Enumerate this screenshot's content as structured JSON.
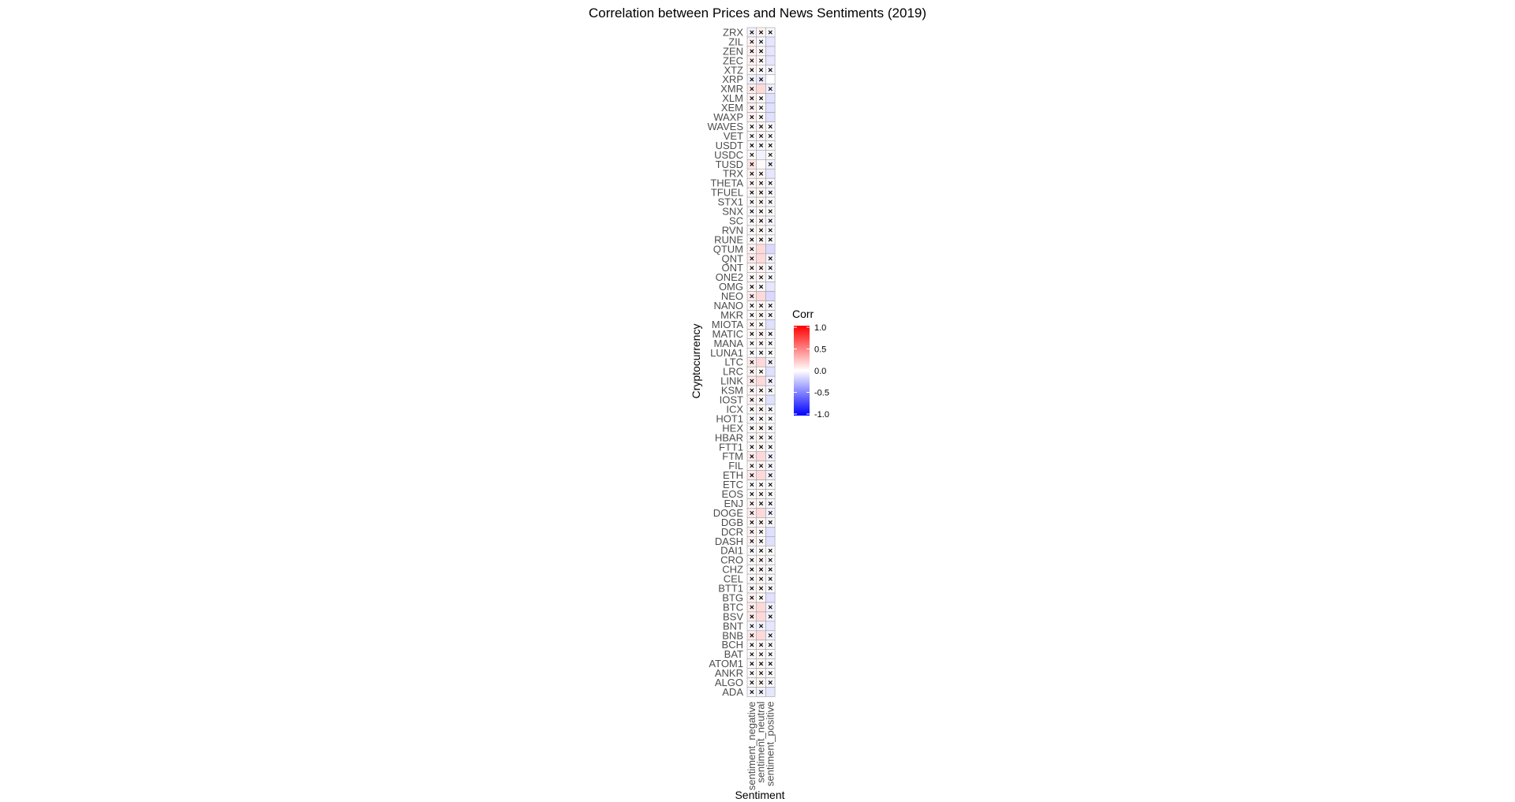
{
  "chart_data": {
    "type": "heatmap",
    "title": "Correlation between Prices and News Sentiments (2019)",
    "xlabel": "Sentiment",
    "ylabel": "Cryptocurrency",
    "x_categories": [
      "sentiment_negative",
      "sentiment_neutral",
      "sentiment_positive"
    ],
    "y_categories": [
      "ZRX",
      "ZIL",
      "ZEN",
      "ZEC",
      "XTZ",
      "XRP",
      "XMR",
      "XLM",
      "XEM",
      "WAXP",
      "WAVES",
      "VET",
      "USDT",
      "USDC",
      "TUSD",
      "TRX",
      "THETA",
      "TFUEL",
      "STX1",
      "SNX",
      "SC",
      "RVN",
      "RUNE",
      "QTUM",
      "QNT",
      "ONT",
      "ONE2",
      "OMG",
      "NEO",
      "NANO",
      "MKR",
      "MIOTA",
      "MATIC",
      "MANA",
      "LUNA1",
      "LTC",
      "LRC",
      "LINK",
      "KSM",
      "IOST",
      "ICX",
      "HOT1",
      "HEX",
      "HBAR",
      "FTT1",
      "FTM",
      "FIL",
      "ETH",
      "ETC",
      "EOS",
      "ENJ",
      "DOGE",
      "DGB",
      "DCR",
      "DASH",
      "DAI1",
      "CRO",
      "CHZ",
      "CEL",
      "BTT1",
      "BTG",
      "BTC",
      "BSV",
      "BNT",
      "BNB",
      "BCH",
      "BAT",
      "ATOM1",
      "ANKR",
      "ALGO",
      "ADA"
    ],
    "values": [
      [
        -0.05,
        0.05,
        -0.03
      ],
      [
        0.05,
        -0.03,
        -0.1
      ],
      [
        0.05,
        0.03,
        -0.1
      ],
      [
        0.05,
        0.03,
        -0.1
      ],
      [
        0.03,
        0.02,
        -0.03
      ],
      [
        -0.05,
        -0.08,
        0.0
      ],
      [
        0.08,
        0.15,
        -0.06
      ],
      [
        0.05,
        0.02,
        -0.12
      ],
      [
        0.05,
        0.02,
        -0.12
      ],
      [
        0.05,
        0.02,
        -0.12
      ],
      [
        0.02,
        0.04,
        -0.02
      ],
      [
        0.02,
        0.03,
        -0.02
      ],
      [
        -0.02,
        -0.02,
        0.01
      ],
      [
        0.02,
        -0.05,
        -0.02
      ],
      [
        0.1,
        0.02,
        -0.05
      ],
      [
        0.05,
        0.03,
        -0.1
      ],
      [
        0.03,
        0.03,
        -0.03
      ],
      [
        0.03,
        0.04,
        -0.03
      ],
      [
        0.02,
        0.03,
        -0.02
      ],
      [
        -0.02,
        0.02,
        0.01
      ],
      [
        0.02,
        0.04,
        -0.03
      ],
      [
        0.02,
        0.03,
        -0.02
      ],
      [
        0.02,
        0.04,
        -0.02
      ],
      [
        0.05,
        0.15,
        -0.15
      ],
      [
        0.08,
        0.15,
        -0.05
      ],
      [
        0.03,
        0.05,
        -0.03
      ],
      [
        0.03,
        0.04,
        -0.03
      ],
      [
        0.03,
        -0.02,
        -0.1
      ],
      [
        0.08,
        0.15,
        -0.15
      ],
      [
        0.02,
        0.03,
        -0.03
      ],
      [
        0.02,
        0.04,
        -0.03
      ],
      [
        0.04,
        0.02,
        -0.12
      ],
      [
        0.03,
        0.05,
        -0.03
      ],
      [
        0.02,
        0.03,
        -0.02
      ],
      [
        -0.02,
        -0.02,
        0.01
      ],
      [
        0.08,
        0.15,
        -0.05
      ],
      [
        0.05,
        0.02,
        -0.12
      ],
      [
        0.08,
        0.15,
        -0.05
      ],
      [
        0.03,
        0.04,
        -0.03
      ],
      [
        0.05,
        0.02,
        -0.12
      ],
      [
        0.02,
        0.04,
        -0.03
      ],
      [
        -0.02,
        0.02,
        0.01
      ],
      [
        0.02,
        0.03,
        -0.02
      ],
      [
        0.03,
        0.04,
        -0.03
      ],
      [
        0.02,
        0.03,
        -0.02
      ],
      [
        0.08,
        0.15,
        -0.05
      ],
      [
        0.03,
        0.04,
        -0.03
      ],
      [
        0.08,
        0.15,
        -0.05
      ],
      [
        -0.02,
        0.02,
        0.01
      ],
      [
        0.02,
        0.03,
        -0.02
      ],
      [
        0.03,
        0.04,
        -0.03
      ],
      [
        0.08,
        0.15,
        -0.05
      ],
      [
        0.03,
        0.04,
        -0.03
      ],
      [
        0.05,
        0.02,
        -0.12
      ],
      [
        0.05,
        0.02,
        -0.12
      ],
      [
        -0.02,
        0.02,
        0.01
      ],
      [
        0.02,
        0.03,
        -0.02
      ],
      [
        0.02,
        0.03,
        -0.02
      ],
      [
        0.02,
        0.03,
        -0.02
      ],
      [
        0.03,
        0.04,
        -0.03
      ],
      [
        0.05,
        0.02,
        -0.12
      ],
      [
        0.08,
        0.15,
        -0.05
      ],
      [
        0.08,
        0.15,
        -0.05
      ],
      [
        -0.03,
        -0.05,
        -0.1
      ],
      [
        0.08,
        0.15,
        -0.05
      ],
      [
        0.02,
        0.03,
        -0.02
      ],
      [
        0.02,
        0.03,
        -0.02
      ],
      [
        0.02,
        0.03,
        -0.02
      ],
      [
        0.02,
        0.03,
        -0.02
      ],
      [
        0.03,
        0.04,
        -0.03
      ],
      [
        -0.03,
        -0.05,
        -0.1
      ]
    ],
    "insignificant": [
      [
        1,
        1,
        1
      ],
      [
        1,
        1,
        0
      ],
      [
        1,
        1,
        0
      ],
      [
        1,
        1,
        0
      ],
      [
        1,
        1,
        1
      ],
      [
        1,
        1,
        0
      ],
      [
        1,
        0,
        1
      ],
      [
        1,
        1,
        0
      ],
      [
        1,
        1,
        0
      ],
      [
        1,
        1,
        0
      ],
      [
        1,
        1,
        1
      ],
      [
        1,
        1,
        1
      ],
      [
        1,
        1,
        1
      ],
      [
        1,
        0,
        1
      ],
      [
        1,
        0,
        1
      ],
      [
        1,
        1,
        0
      ],
      [
        1,
        1,
        1
      ],
      [
        1,
        1,
        1
      ],
      [
        1,
        1,
        1
      ],
      [
        1,
        1,
        1
      ],
      [
        1,
        1,
        1
      ],
      [
        1,
        1,
        1
      ],
      [
        1,
        1,
        1
      ],
      [
        1,
        0,
        0
      ],
      [
        1,
        0,
        1
      ],
      [
        1,
        1,
        1
      ],
      [
        1,
        1,
        1
      ],
      [
        1,
        1,
        0
      ],
      [
        1,
        0,
        0
      ],
      [
        1,
        1,
        1
      ],
      [
        1,
        1,
        1
      ],
      [
        1,
        1,
        0
      ],
      [
        1,
        1,
        1
      ],
      [
        1,
        1,
        1
      ],
      [
        1,
        1,
        1
      ],
      [
        1,
        0,
        1
      ],
      [
        1,
        1,
        0
      ],
      [
        1,
        0,
        1
      ],
      [
        1,
        1,
        1
      ],
      [
        1,
        1,
        0
      ],
      [
        1,
        1,
        1
      ],
      [
        1,
        1,
        1
      ],
      [
        1,
        1,
        1
      ],
      [
        1,
        1,
        1
      ],
      [
        1,
        1,
        1
      ],
      [
        1,
        0,
        1
      ],
      [
        1,
        1,
        1
      ],
      [
        1,
        0,
        1
      ],
      [
        1,
        1,
        1
      ],
      [
        1,
        1,
        1
      ],
      [
        1,
        1,
        1
      ],
      [
        1,
        0,
        1
      ],
      [
        1,
        1,
        1
      ],
      [
        1,
        1,
        0
      ],
      [
        1,
        1,
        0
      ],
      [
        1,
        1,
        1
      ],
      [
        1,
        1,
        1
      ],
      [
        1,
        1,
        1
      ],
      [
        1,
        1,
        1
      ],
      [
        1,
        1,
        1
      ],
      [
        1,
        1,
        0
      ],
      [
        1,
        0,
        1
      ],
      [
        1,
        0,
        1
      ],
      [
        1,
        1,
        0
      ],
      [
        1,
        0,
        1
      ],
      [
        1,
        1,
        1
      ],
      [
        1,
        1,
        1
      ],
      [
        1,
        1,
        1
      ],
      [
        1,
        1,
        1
      ],
      [
        1,
        1,
        1
      ],
      [
        1,
        1,
        0
      ]
    ],
    "legend": {
      "title": "Corr",
      "ticks": [
        1.0,
        0.5,
        0.0,
        -0.5,
        -1.0
      ],
      "tick_labels": [
        "1.0",
        "0.5",
        "0.0",
        "-0.5",
        "-1.0"
      ],
      "colors": {
        "high": "#ff0000",
        "mid": "#ffffff",
        "low": "#0000ff"
      },
      "range": [
        -1,
        1
      ],
      "placement": "right"
    },
    "grid": false
  }
}
